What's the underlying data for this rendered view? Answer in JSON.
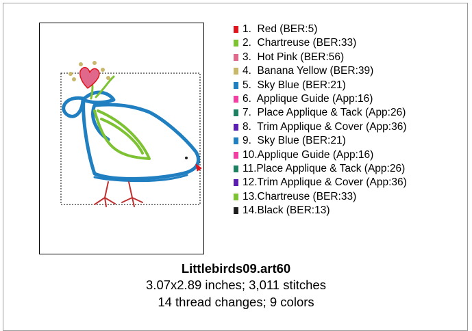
{
  "legend": [
    {
      "text": "1.  Red (BER:5)",
      "color": "#e0141c"
    },
    {
      "text": "2.  Chartreuse (BER:33)",
      "color": "#7dc232"
    },
    {
      "text": "3.  Hot Pink (BER:56)",
      "color": "#e0688a"
    },
    {
      "text": "4.  Banana Yellow (BER:39)",
      "color": "#c9b76c"
    },
    {
      "text": "5.  Sky Blue (BER:21)",
      "color": "#1f7fc1"
    },
    {
      "text": "6.  Applique Guide (App:16)",
      "color": "#f23ea0"
    },
    {
      "text": "7.  Place Applique & Tack (App:26)",
      "color": "#1d8060"
    },
    {
      "text": "8.  Trim Applique & Cover (App:36)",
      "color": "#5a1eb0"
    },
    {
      "text": "9.  Sky Blue (BER:21)",
      "color": "#1f7fc1"
    },
    {
      "text": "10.Applique Guide (App:16)",
      "color": "#f23ea0"
    },
    {
      "text": "11.Place Applique & Tack (App:26)",
      "color": "#1d8060"
    },
    {
      "text": "12.Trim Applique & Cover (App:36)",
      "color": "#5a1eb0"
    },
    {
      "text": "13.Chartreuse (BER:33)",
      "color": "#7dc232"
    },
    {
      "text": "14.Black (BER:13)",
      "color": "#1e1e1e"
    }
  ],
  "footer": {
    "title": "Littlebirds09.art60",
    "line1": "3.07x2.89 inches; 3,011 stitches",
    "line2": "14 thread changes; 9 colors"
  }
}
